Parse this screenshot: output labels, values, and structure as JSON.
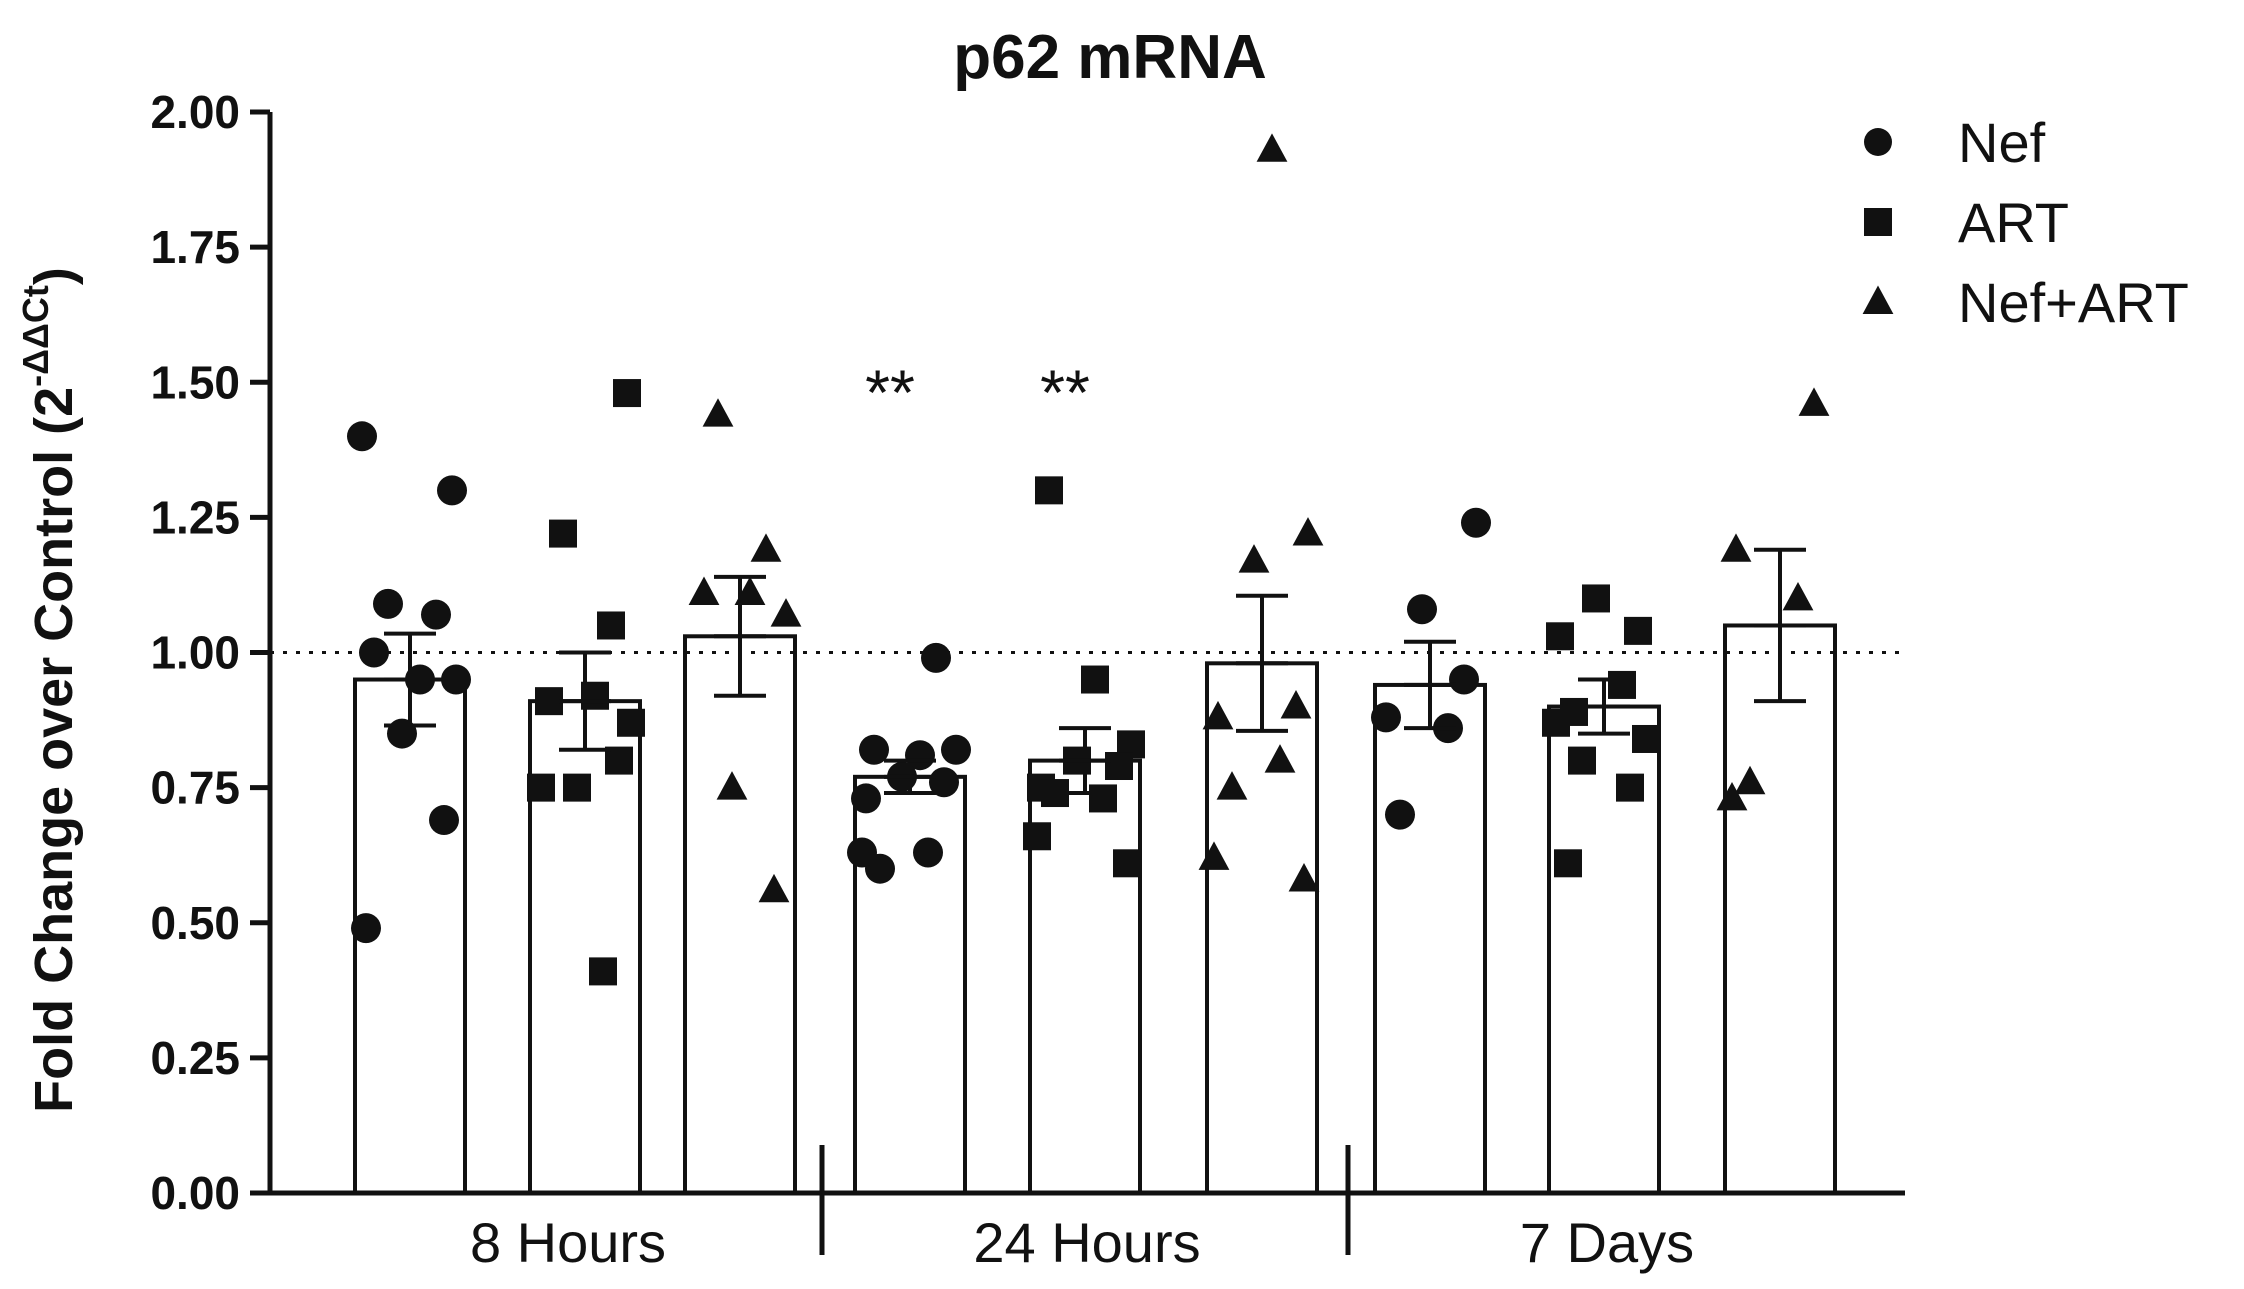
{
  "chart_data": {
    "type": "bar",
    "title": "p62 mRNA",
    "ylabel_main": "Fold Change over Control (2",
    "ylabel_sup": "-ΔΔCt",
    "ylabel_close": ")",
    "ylim": [
      0,
      2.0
    ],
    "yticks": [
      "0.00",
      "0.25",
      "0.50",
      "0.75",
      "1.00",
      "1.25",
      "1.50",
      "1.75",
      "2.00"
    ],
    "reference_line": 1.0,
    "groups": [
      "8 Hours",
      "24 Hours",
      "7 Days"
    ],
    "legend": [
      {
        "name": "Nef",
        "marker": "circle"
      },
      {
        "name": "ART",
        "marker": "square"
      },
      {
        "name": "Nef+ART",
        "marker": "triangle"
      }
    ],
    "bars": [
      {
        "group": "8 Hours",
        "series": "Nef",
        "marker": "circle",
        "mean": 0.95,
        "sem": 0.085,
        "points": [
          1.4,
          1.3,
          1.09,
          1.07,
          1.0,
          0.95,
          0.95,
          0.85,
          0.69,
          0.49
        ]
      },
      {
        "group": "8 Hours",
        "series": "ART",
        "marker": "square",
        "mean": 0.91,
        "sem": 0.09,
        "points": [
          1.48,
          1.22,
          1.05,
          0.91,
          0.92,
          0.87,
          0.75,
          0.8,
          0.75,
          0.41
        ]
      },
      {
        "group": "8 Hours",
        "series": "Nef+ART",
        "marker": "triangle",
        "mean": 1.03,
        "sem": 0.11,
        "points": [
          1.44,
          1.19,
          1.11,
          1.11,
          1.07,
          0.75,
          0.56
        ]
      },
      {
        "group": "24 Hours",
        "series": "Nef",
        "marker": "circle",
        "mean": 0.77,
        "sem": 0.03,
        "significance": "**",
        "points": [
          0.99,
          0.82,
          0.81,
          0.82,
          0.77,
          0.76,
          0.73,
          0.63,
          0.6,
          0.63
        ]
      },
      {
        "group": "24 Hours",
        "series": "ART",
        "marker": "square",
        "mean": 0.8,
        "sem": 0.06,
        "significance": "**",
        "points": [
          1.3,
          0.95,
          0.83,
          0.8,
          0.79,
          0.75,
          0.73,
          0.74,
          0.66,
          0.61
        ]
      },
      {
        "group": "24 Hours",
        "series": "Nef+ART",
        "marker": "triangle",
        "mean": 0.98,
        "sem": 0.125,
        "points": [
          1.93,
          1.22,
          1.17,
          0.9,
          0.88,
          0.8,
          0.75,
          0.62,
          0.58
        ]
      },
      {
        "group": "7 Days",
        "series": "Nef",
        "marker": "circle",
        "mean": 0.94,
        "sem": 0.08,
        "points": [
          1.24,
          1.08,
          0.95,
          0.88,
          0.86,
          0.7
        ]
      },
      {
        "group": "7 Days",
        "series": "ART",
        "marker": "square",
        "mean": 0.9,
        "sem": 0.05,
        "points": [
          1.1,
          1.04,
          1.03,
          0.94,
          0.89,
          0.87,
          0.84,
          0.8,
          0.75,
          0.61
        ]
      },
      {
        "group": "7 Days",
        "series": "Nef+ART",
        "marker": "triangle",
        "mean": 1.05,
        "sem": 0.14,
        "points": [
          1.46,
          1.19,
          1.1,
          0.76,
          0.73
        ]
      }
    ]
  }
}
